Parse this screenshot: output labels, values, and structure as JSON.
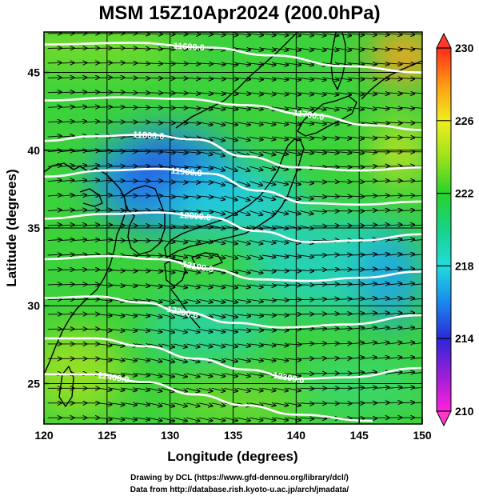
{
  "title": "MSM 15Z10Apr2024 (200.0hPa)",
  "map": {
    "lon_range": [
      120,
      150
    ],
    "lat_range": [
      22.4,
      47.6
    ],
    "x_ticks": [
      120,
      125,
      130,
      135,
      140,
      145,
      150
    ],
    "y_ticks": [
      25,
      30,
      35,
      40,
      45
    ],
    "xlabel": "Longitude (degrees)",
    "ylabel": "Latitude  (degrees)",
    "field": "temperature shading (contours of geopotential height, wind vectors)",
    "colors": {
      "coast": "#000000",
      "contour": "#ffffff",
      "gridline": "#000000"
    },
    "contours": [
      {
        "label": "11600.0",
        "lat_at_lon": [
          [
            120,
            46.8
          ],
          [
            127,
            46.9
          ],
          [
            133,
            46.6
          ],
          [
            138,
            46.1
          ],
          [
            144,
            45.4
          ],
          [
            150,
            45.0
          ]
        ],
        "label_lon": 131.5
      },
      {
        "label": "11700.0",
        "lat_at_lon": [
          [
            120,
            43.2
          ],
          [
            126,
            43.4
          ],
          [
            131,
            43.3
          ],
          [
            136,
            42.9
          ],
          [
            141,
            42.3
          ],
          [
            146,
            41.6
          ],
          [
            150,
            41.3
          ]
        ],
        "label_lon": 141.0
      },
      {
        "label": "11800.0",
        "lat_at_lon": [
          [
            120,
            40.6
          ],
          [
            124,
            40.9
          ],
          [
            128,
            41.0
          ],
          [
            132,
            40.7
          ],
          [
            136,
            39.6
          ],
          [
            140,
            38.9
          ],
          [
            145,
            38.7
          ],
          [
            150,
            38.9
          ]
        ],
        "label_lon": 128.3
      },
      {
        "label": "11900.0",
        "lat_at_lon": [
          [
            120,
            38.3
          ],
          [
            125,
            38.7
          ],
          [
            129,
            38.8
          ],
          [
            133,
            38.5
          ],
          [
            137,
            37.4
          ],
          [
            141,
            36.6
          ],
          [
            145,
            36.5
          ],
          [
            150,
            36.7
          ]
        ],
        "label_lon": 131.3
      },
      {
        "label": "12000.0",
        "lat_at_lon": [
          [
            120,
            35.6
          ],
          [
            125,
            35.9
          ],
          [
            129,
            36.0
          ],
          [
            133,
            35.7
          ],
          [
            137,
            34.8
          ],
          [
            141,
            34.1
          ],
          [
            145,
            34.2
          ],
          [
            150,
            34.6
          ]
        ],
        "label_lon": 132.0
      },
      {
        "label": "12100.0",
        "lat_at_lon": [
          [
            120,
            33.0
          ],
          [
            125,
            33.2
          ],
          [
            129,
            33.0
          ],
          [
            133,
            32.4
          ],
          [
            137,
            31.7
          ],
          [
            141,
            31.6
          ],
          [
            145,
            31.8
          ],
          [
            150,
            32.2
          ]
        ],
        "label_lon": 132.2
      },
      {
        "label": "12200.0",
        "lat_at_lon": [
          [
            120,
            30.5
          ],
          [
            124,
            30.6
          ],
          [
            128,
            30.2
          ],
          [
            131,
            29.6
          ],
          [
            135,
            28.9
          ],
          [
            139,
            28.6
          ],
          [
            144,
            28.8
          ],
          [
            150,
            29.4
          ]
        ],
        "label_lon": 131.0
      },
      {
        "label": "12300.0",
        "lat_at_lon": [
          [
            120,
            27.9
          ],
          [
            124,
            27.9
          ],
          [
            128,
            27.4
          ],
          [
            132,
            26.6
          ],
          [
            136,
            25.9
          ],
          [
            140,
            25.3
          ],
          [
            144,
            25.4
          ],
          [
            150,
            26.0
          ]
        ],
        "label_lon": 139.4
      },
      {
        "label": "12400.0",
        "lat_at_lon": [
          [
            120,
            25.6
          ],
          [
            124,
            25.6
          ],
          [
            128,
            25.1
          ],
          [
            132,
            24.3
          ],
          [
            136,
            23.6
          ],
          [
            140,
            23.0
          ],
          [
            146,
            22.6
          ]
        ],
        "label_lon": 125.5
      }
    ]
  },
  "colorbar": {
    "min": 210,
    "max": 230,
    "tick_labels": [
      "230",
      "226",
      "222",
      "218",
      "214",
      "210"
    ],
    "tick_values": [
      230,
      226,
      222,
      218,
      214,
      210
    ],
    "stops": [
      {
        "value": 210,
        "color": "#ff22dd"
      },
      {
        "value": 212,
        "color": "#9a1ed6"
      },
      {
        "value": 214,
        "color": "#2a28d8"
      },
      {
        "value": 216,
        "color": "#1a88ee"
      },
      {
        "value": 218,
        "color": "#22dcdc"
      },
      {
        "value": 220,
        "color": "#19d28a"
      },
      {
        "value": 222,
        "color": "#28d22a"
      },
      {
        "value": 224,
        "color": "#9ee21c"
      },
      {
        "value": 226,
        "color": "#f0ee1e"
      },
      {
        "value": 228,
        "color": "#ff9a14"
      },
      {
        "value": 230,
        "color": "#ff2a18"
      }
    ],
    "over_arrow_color": "#ff3a2a",
    "under_arrow_color": "#ff3ac8"
  },
  "footer": {
    "line1": "Drawing by DCL (https://www.gfd-dennou.org/library/dcl/)",
    "line2": "Data from http://database.rish.kyoto-u.ac.jp/arch/jmadata/"
  }
}
